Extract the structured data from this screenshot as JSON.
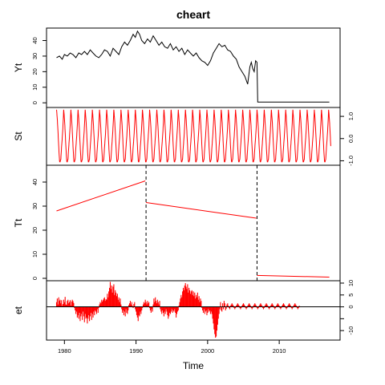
{
  "chart_data": {
    "type": "line",
    "title": "cheart",
    "xlabel": "Time",
    "xlim": [
      1977.5,
      2018.5
    ],
    "x_ticks": [
      1980,
      1990,
      2000,
      2010
    ],
    "breakpoints": [
      1991.4,
      2006.9
    ],
    "colors": {
      "observed": "#000000",
      "components": "#ff0000",
      "breakpoint": "#000000",
      "axis": "#000000"
    },
    "panels": [
      {
        "name": "Yt",
        "ylabel": "Yt",
        "ylim": [
          -3,
          48
        ],
        "tick_side": "left",
        "ticks": [
          0,
          10,
          20,
          30,
          40
        ],
        "tick_labels": [
          "0",
          "10",
          "20",
          "30",
          "40"
        ],
        "series": [
          {
            "kind": "line",
            "color": "#000000",
            "points": [
              [
                1978.9,
                29
              ],
              [
                1979.3,
                30
              ],
              [
                1979.7,
                28
              ],
              [
                1980.0,
                31
              ],
              [
                1980.4,
                30
              ],
              [
                1980.8,
                32
              ],
              [
                1981.2,
                31
              ],
              [
                1981.6,
                29
              ],
              [
                1982.0,
                32
              ],
              [
                1982.4,
                31
              ],
              [
                1982.8,
                33
              ],
              [
                1983.2,
                31
              ],
              [
                1983.6,
                34
              ],
              [
                1984.0,
                32
              ],
              [
                1984.4,
                30
              ],
              [
                1984.8,
                29
              ],
              [
                1985.2,
                31
              ],
              [
                1985.6,
                34
              ],
              [
                1986.0,
                33
              ],
              [
                1986.4,
                30
              ],
              [
                1986.8,
                35
              ],
              [
                1987.2,
                33
              ],
              [
                1987.6,
                31
              ],
              [
                1988.0,
                36
              ],
              [
                1988.4,
                39
              ],
              [
                1988.8,
                37
              ],
              [
                1989.2,
                40
              ],
              [
                1989.6,
                44
              ],
              [
                1989.9,
                42
              ],
              [
                1990.2,
                46
              ],
              [
                1990.5,
                44
              ],
              [
                1990.8,
                40
              ],
              [
                1991.2,
                38
              ],
              [
                1991.6,
                41
              ],
              [
                1992.0,
                39
              ],
              [
                1992.4,
                43
              ],
              [
                1992.8,
                40
              ],
              [
                1993.2,
                37
              ],
              [
                1993.6,
                39
              ],
              [
                1994.0,
                36
              ],
              [
                1994.4,
                35
              ],
              [
                1994.8,
                38
              ],
              [
                1995.2,
                34
              ],
              [
                1995.6,
                36
              ],
              [
                1996.0,
                33
              ],
              [
                1996.4,
                35
              ],
              [
                1996.8,
                31
              ],
              [
                1997.2,
                34
              ],
              [
                1997.6,
                32
              ],
              [
                1998.0,
                30
              ],
              [
                1998.4,
                32
              ],
              [
                1998.8,
                29
              ],
              [
                1999.2,
                27
              ],
              [
                1999.6,
                26
              ],
              [
                2000.0,
                24
              ],
              [
                2000.4,
                27
              ],
              [
                2000.8,
                32
              ],
              [
                2001.2,
                35
              ],
              [
                2001.6,
                38
              ],
              [
                2002.0,
                36
              ],
              [
                2002.4,
                37
              ],
              [
                2002.8,
                34
              ],
              [
                2003.2,
                33
              ],
              [
                2003.6,
                30
              ],
              [
                2004.0,
                28
              ],
              [
                2004.4,
                23
              ],
              [
                2004.8,
                20
              ],
              [
                2005.2,
                17
              ],
              [
                2005.6,
                12
              ],
              [
                2005.9,
                23
              ],
              [
                2006.1,
                26
              ],
              [
                2006.3,
                22
              ],
              [
                2006.5,
                20
              ],
              [
                2006.7,
                27
              ],
              [
                2006.9,
                26
              ],
              [
                2007.0,
                0.5
              ],
              [
                2017.0,
                0.5
              ]
            ]
          }
        ]
      },
      {
        "name": "St",
        "ylabel": "St",
        "ylim": [
          -1.2,
          1.4
        ],
        "tick_side": "right",
        "ticks": [
          -1.0,
          0.0,
          1.0
        ],
        "tick_labels": [
          "-1.0",
          "0.0",
          "1.0"
        ],
        "series": [
          {
            "kind": "seasonal",
            "color": "#ff0000",
            "x_start": 1978.9,
            "x_end": 2017.2,
            "period": 1.0,
            "min": -1.05,
            "max": 1.3
          }
        ]
      },
      {
        "name": "Tt",
        "ylabel": "Tt",
        "ylim": [
          -1,
          47
        ],
        "tick_side": "left",
        "ticks": [
          0,
          10,
          20,
          30,
          40
        ],
        "tick_labels": [
          "0",
          "10",
          "20",
          "30",
          "40"
        ],
        "series": [
          {
            "kind": "line",
            "color": "#ff0000",
            "points": [
              [
                1978.9,
                28
              ],
              [
                1991.3,
                40.5
              ]
            ]
          },
          {
            "kind": "line",
            "color": "#ff0000",
            "points": [
              [
                1991.4,
                31.5
              ],
              [
                2006.8,
                25
              ]
            ]
          },
          {
            "kind": "line",
            "color": "#ff0000",
            "points": [
              [
                2006.9,
                1.2
              ],
              [
                2017.0,
                0.5
              ]
            ]
          }
        ]
      },
      {
        "name": "et",
        "ylabel": "et",
        "ylim": [
          -14,
          11
        ],
        "tick_side": "right",
        "ticks": [
          -10,
          -5,
          0,
          5,
          10
        ],
        "tick_labels": [
          "-10",
          "",
          "0",
          "5",
          "10"
        ],
        "baseline": 0,
        "series": [
          {
            "kind": "spikes",
            "color": "#ff0000",
            "x_start": 1978.9,
            "step": 0.1,
            "values": [
              2.0,
              3.5,
              1.0,
              4.0,
              2.5,
              3.0,
              1.5,
              2.8,
              0.5,
              1.2,
              3.0,
              2.0,
              4.2,
              1.0,
              0.8,
              2.5,
              3.0,
              1.5,
              2.0,
              2.8,
              0.6,
              2.2,
              3.0,
              2.4,
              1.6,
              -0.5,
              -1.5,
              -3.0,
              -2.0,
              -4.5,
              -3.5,
              -5.0,
              -2.5,
              -6.0,
              -4.0,
              -3.0,
              -5.5,
              -2.0,
              -4.0,
              -6.5,
              -3.0,
              -5.0,
              -4.5,
              -7.0,
              -5.0,
              -3.5,
              -6.0,
              -4.0,
              -2.5,
              -5.5,
              -3.0,
              -4.5,
              -2.0,
              -3.5,
              -1.5,
              -2.0,
              -3.0,
              -1.0,
              -2.5,
              -0.5,
              1.0,
              2.0,
              1.5,
              3.0,
              2.2,
              2.8,
              3.5,
              4.0,
              2.5,
              3.2,
              3.0,
              5.5,
              4.0,
              6.5,
              8.0,
              10.5,
              7.5,
              9.0,
              6.0,
              8.5,
              9.5,
              5.0,
              7.0,
              6.0,
              4.5,
              5.5,
              3.0,
              4.0,
              2.0,
              3.5,
              1.0,
              -1.0,
              -2.5,
              -1.5,
              -3.5,
              -2.0,
              -4.0,
              -1.0,
              -2.5,
              -3.0,
              -1.5,
              0.8,
              1.5,
              2.5,
              1.0,
              2.0,
              0.5,
              -0.5,
              1.2,
              2.0,
              -1.0,
              -2.0,
              -3.5,
              -4.5,
              -6.0,
              -3.5,
              -4.0,
              -2.0,
              -3.0,
              -1.5,
              -0.5,
              1.0,
              2.0,
              1.5,
              3.0,
              2.0,
              1.0,
              2.5,
              1.5,
              2.0,
              -0.5,
              -1.5,
              -2.5,
              -1.0,
              -2.0,
              1.0,
              3.5,
              2.0,
              4.0,
              2.5,
              1.5,
              3.0,
              2.0,
              1.0,
              2.5,
              -1.0,
              -2.0,
              -3.0,
              -1.5,
              -2.5,
              -4.0,
              -2.0,
              -3.0,
              -1.0,
              -2.0,
              -3.5,
              -5.0,
              -4.0,
              -2.5,
              -3.0,
              -2.0,
              -1.0,
              -2.5,
              -1.5,
              -2.0,
              -1.0,
              -2.5,
              -4.5,
              -3.0,
              -2.0,
              -1.5,
              0.5,
              2.0,
              3.5,
              5.0,
              4.0,
              6.5,
              8.0,
              7.0,
              9.0,
              10.0,
              8.5,
              7.5,
              9.5,
              6.0,
              8.0,
              7.0,
              5.5,
              6.5,
              7.0,
              5.0,
              6.5,
              4.5,
              6.0,
              3.5,
              5.0,
              4.0,
              6.0,
              3.0,
              4.5,
              2.0,
              3.5,
              2.5,
              -0.5,
              -1.5,
              -2.5,
              -1.0,
              -3.0,
              -2.0,
              -1.5,
              -3.5,
              -2.5,
              -1.0,
              -2.0,
              -1.5,
              -3.0,
              -2.0,
              -3.0,
              -5.0,
              -7.0,
              -9.5,
              -11.5,
              -13.0,
              -12.5,
              -10.0,
              -7.5,
              -5.0,
              -3.0,
              -1.0,
              2.0,
              -1.5,
              -2.0,
              1.5,
              -1.0,
              2.5,
              1.5,
              -1.5,
              -0.8,
              1.0,
              1.5,
              0.5,
              -0.5,
              -1.0,
              0.5,
              1.0,
              1.5,
              1.0,
              0.5,
              -0.5,
              -1.0,
              -0.5,
              0.5,
              1.0,
              1.5,
              1.0,
              0.5,
              -0.5,
              -1.0,
              -0.5,
              0.5,
              1.0,
              1.5,
              1.0,
              0.5,
              -0.5,
              -1.0,
              -0.5,
              0.5,
              1.0,
              1.5,
              1.0,
              0.5,
              -0.5,
              -1.0,
              -0.5,
              0.5,
              1.0,
              1.5,
              1.0,
              0.5,
              -0.5,
              -1.0,
              -0.5,
              0.5,
              1.0,
              1.5,
              1.0,
              0.5,
              -0.5,
              -1.0,
              -0.5,
              0.5,
              1.0,
              1.5,
              1.0,
              0.5,
              -0.5,
              -1.0,
              -0.5,
              0.5,
              1.0,
              1.5,
              1.0,
              0.5,
              -0.5,
              -1.0,
              -0.5,
              0.5,
              1.0,
              1.5,
              1.0,
              0.5,
              -0.5,
              -1.0,
              -0.5,
              0.5,
              1.0,
              1.5,
              1.0,
              0.5,
              -0.5,
              -1.0,
              -0.5,
              0.5,
              1.0,
              1.5,
              1.0,
              0.5,
              -0.5,
              -1.0,
              -0.5,
              0.5,
              1.0,
              1.5,
              1.0,
              0.5,
              -0.5,
              -1.0,
              -0.5,
              0.5
            ]
          }
        ]
      }
    ]
  }
}
